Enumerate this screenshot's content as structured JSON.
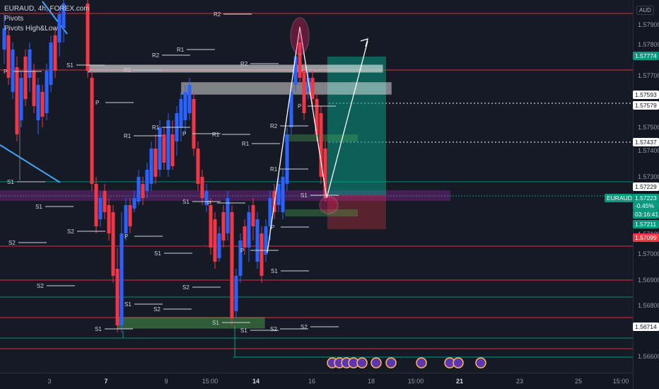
{
  "symbol_title": "EURAUD, 4h, FOREX.com",
  "indicators": [
    "Pivots",
    "Pivots High&Low"
  ],
  "currency_button": "AUD",
  "price_axis_ticks": [
    "1.57900",
    "1.57800",
    "1.57700",
    "1.57600",
    "1.57500",
    "1.57400",
    "1.57300",
    "1.57100",
    "1.57000",
    "1.56900",
    "1.56800",
    "1.56600"
  ],
  "price_badges": [
    {
      "label": "1.57774",
      "style": "green"
    },
    {
      "label": "1.57593",
      "style": "white"
    },
    {
      "label": "1.57579",
      "style": "white"
    },
    {
      "label": "1.57437",
      "style": "white"
    },
    {
      "label": "1.57229",
      "style": "white"
    },
    {
      "label": "1.57223",
      "style": "green"
    },
    {
      "label": "-0.45%",
      "style": "green"
    },
    {
      "label": "03:16:41",
      "style": "green"
    },
    {
      "label": "1.57211",
      "style": "green"
    },
    {
      "label": "1.57099",
      "style": "red"
    },
    {
      "label": "1.56714",
      "style": "white"
    }
  ],
  "symbol_badge": "EURAUD",
  "time_axis_ticks": [
    {
      "label": "3",
      "bold": false
    },
    {
      "label": "7",
      "bold": true
    },
    {
      "label": "9",
      "bold": false
    },
    {
      "label": "15:00",
      "bold": false
    },
    {
      "label": "14",
      "bold": true
    },
    {
      "label": "16",
      "bold": false
    },
    {
      "label": "18",
      "bold": false
    },
    {
      "label": "15:00",
      "bold": false
    },
    {
      "label": "21",
      "bold": true
    },
    {
      "label": "23",
      "bold": false
    },
    {
      "label": "25",
      "bold": false
    },
    {
      "label": "15:00",
      "bold": false
    }
  ],
  "pivot_labels": [
    "R2",
    "R1",
    "S1",
    "P",
    "S2"
  ],
  "colors": {
    "bull": "#2962ff",
    "bear": "#f23645",
    "support": "#089981",
    "resist": "#f23645"
  }
}
